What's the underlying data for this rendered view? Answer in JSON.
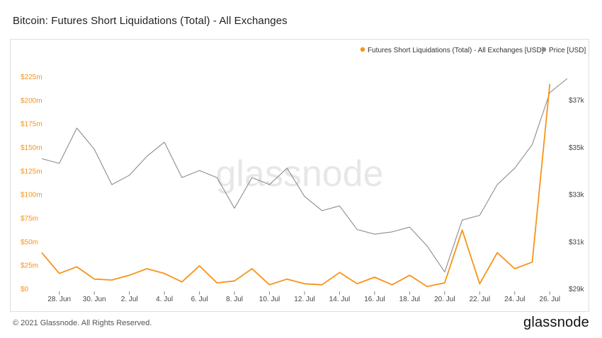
{
  "title": "Bitcoin: Futures Short Liquidations (Total) - All Exchanges",
  "footer": {
    "copyright": "© 2021 Glassnode. All Rights Reserved.",
    "logo": "glassnode"
  },
  "watermark": "glassnode",
  "colors": {
    "liquidations": "#f7931a",
    "price": "#8c8c8c"
  },
  "chart_data": {
    "type": "line",
    "title": "Bitcoin: Futures Short Liquidations (Total) - All Exchanges",
    "x": [
      "Jun 27",
      "Jun 28",
      "Jun 29",
      "Jun 30",
      "Jul 1",
      "Jul 2",
      "Jul 3",
      "Jul 4",
      "Jul 5",
      "Jul 6",
      "Jul 7",
      "Jul 8",
      "Jul 9",
      "Jul 10",
      "Jul 11",
      "Jul 12",
      "Jul 13",
      "Jul 14",
      "Jul 15",
      "Jul 16",
      "Jul 17",
      "Jul 18",
      "Jul 19",
      "Jul 20",
      "Jul 21",
      "Jul 22",
      "Jul 23",
      "Jul 24",
      "Jul 25",
      "Jul 26",
      "Jul 27"
    ],
    "x_tick_labels": [
      "28. Jun",
      "30. Jun",
      "2. Jul",
      "4. Jul",
      "6. Jul",
      "8. Jul",
      "10. Jul",
      "12. Jul",
      "14. Jul",
      "16. Jul",
      "18. Jul",
      "20. Jul",
      "22. Jul",
      "24. Jul",
      "26. Jul"
    ],
    "x_tick_dates": [
      "Jun 28",
      "Jun 30",
      "Jul 2",
      "Jul 4",
      "Jul 6",
      "Jul 8",
      "Jul 10",
      "Jul 12",
      "Jul 14",
      "Jul 16",
      "Jul 18",
      "Jul 20",
      "Jul 22",
      "Jul 24",
      "Jul 26"
    ],
    "y_left": {
      "ticks": [
        "$0",
        "$25m",
        "$50m",
        "$75m",
        "$100m",
        "$125m",
        "$150m",
        "$175m",
        "$200m",
        "$225m"
      ],
      "tick_values": [
        0,
        25,
        50,
        75,
        100,
        125,
        150,
        175,
        200,
        225
      ],
      "range": [
        0,
        225
      ],
      "unit": "million USD"
    },
    "y_right": {
      "ticks": [
        "$29k",
        "$31k",
        "$33k",
        "$35k",
        "$37k"
      ],
      "tick_values": [
        29000,
        31000,
        33000,
        35000,
        37000
      ],
      "range": [
        29000,
        38000
      ]
    },
    "series": [
      {
        "name": "Futures Short Liquidations (Total) - All Exchanges [USD]",
        "axis": "left",
        "color": "#f7931a",
        "values": [
          38,
          16,
          23,
          10,
          9,
          14,
          21,
          16,
          7,
          24,
          6,
          8,
          21,
          4,
          10,
          5,
          4,
          17,
          5,
          12,
          4,
          14,
          2,
          6,
          62,
          5,
          38,
          21,
          28,
          217,
          null
        ]
      },
      {
        "name": "Price [USD]",
        "axis": "right",
        "color": "#8c8c8c",
        "values": [
          34500,
          34300,
          35800,
          34900,
          33400,
          33800,
          34600,
          35200,
          33700,
          34000,
          33700,
          32400,
          33700,
          33400,
          34100,
          32900,
          32300,
          32500,
          31500,
          31300,
          31400,
          31600,
          30800,
          29700,
          31900,
          32100,
          33400,
          34100,
          35100,
          37300,
          37900
        ]
      }
    ],
    "legend": [
      "Futures Short Liquidations (Total) - All Exchanges [USD]",
      "Price [USD]"
    ],
    "legend_position": "top-right",
    "grid": false
  }
}
